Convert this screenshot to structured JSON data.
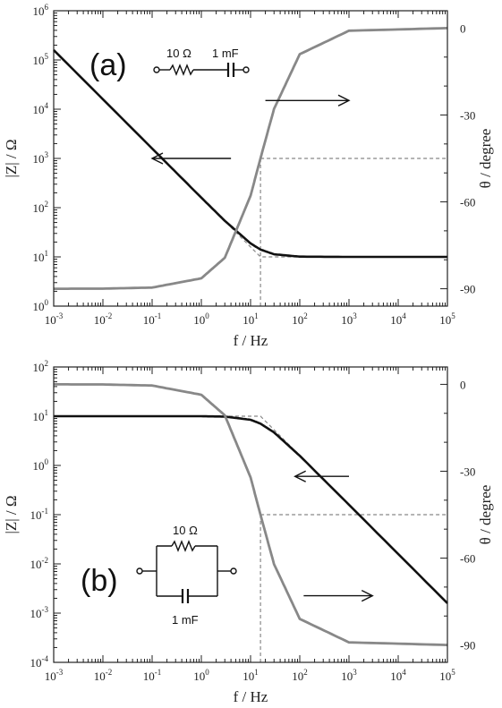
{
  "figure": {
    "background": "#ffffff"
  },
  "chart_data": [
    {
      "type": "line",
      "panel_label": "(a)",
      "circuit": {
        "topology": "series",
        "resistor": "10 Ω",
        "capacitor": "1 mF"
      },
      "xlabel": "f / Hz",
      "x_scale": "log",
      "xlim": [
        0.001,
        100000
      ],
      "x_ticks": [
        "10-3",
        "10-2",
        "10-1",
        "100",
        "101",
        "102",
        "103",
        "104",
        "105"
      ],
      "ylabel_left": "|Z| / Ω",
      "ylim_left": [
        1,
        1000000
      ],
      "y_scale_left": "log",
      "y_ticks_left": [
        "100",
        "101",
        "102",
        "103",
        "104",
        "105",
        "106"
      ],
      "ylabel_right": "θ / degree",
      "ylim_right": [
        -96,
        6
      ],
      "y_ticks_right": [
        "0",
        "-30",
        "-60",
        "-90"
      ],
      "characteristic_frequency": 15.9,
      "series": [
        {
          "axis": "left",
          "color": "#111111",
          "x": [
            0.001,
            0.01,
            0.1,
            1,
            3,
            10,
            15.9,
            30,
            100,
            1000,
            100000
          ],
          "y": [
            159155,
            15915,
            1592,
            159.5,
            54,
            18.8,
            14.1,
            11.3,
            10.12,
            10.0,
            10.0
          ]
        },
        {
          "axis": "right",
          "color": "#888888",
          "x": [
            0.001,
            0.01,
            0.1,
            1,
            3,
            10,
            15.9,
            30,
            100,
            1000,
            100000
          ],
          "y": [
            -90.0,
            -89.96,
            -89.6,
            -86.4,
            -79.3,
            -57.9,
            -45.0,
            -27.9,
            -9.0,
            -0.9,
            0.0
          ]
        }
      ],
      "guides": [
        {
          "axis": "left",
          "color": "#888888",
          "x": [
            0.001,
            15.9,
            100000
          ],
          "y": [
            159155,
            10,
            10
          ]
        },
        {
          "axis": "right",
          "color": "#888888",
          "x": [
            15.9,
            100000
          ],
          "y": [
            -45,
            -45
          ]
        },
        {
          "axis": "right",
          "color": "#888888",
          "x": [
            15.9,
            15.9
          ],
          "y": [
            -45,
            -96
          ]
        }
      ],
      "arrows": [
        {
          "axis": "left",
          "from": [
            4,
            1000
          ],
          "to": [
            0.1,
            1000
          ]
        },
        {
          "axis": "right",
          "from": [
            20,
            -25
          ],
          "to": [
            1000,
            -25
          ]
        }
      ]
    },
    {
      "type": "line",
      "panel_label": "(b)",
      "circuit": {
        "topology": "parallel",
        "resistor": "10 Ω",
        "capacitor": "1 mF"
      },
      "xlabel": "f / Hz",
      "x_scale": "log",
      "xlim": [
        0.001,
        100000
      ],
      "x_ticks": [
        "10-3",
        "10-2",
        "10-1",
        "100",
        "101",
        "102",
        "103",
        "104",
        "105"
      ],
      "ylabel_left": "|Z| / Ω",
      "ylim_left": [
        0.0001,
        100
      ],
      "y_scale_left": "log",
      "y_ticks_left": [
        "10-4",
        "10-3",
        "10-2",
        "10-1",
        "100",
        "101",
        "102"
      ],
      "ylabel_right": "θ / degree",
      "ylim_right": [
        -96,
        6
      ],
      "y_ticks_right": [
        "0",
        "-30",
        "-60",
        "-90"
      ],
      "characteristic_frequency": 15.9,
      "series": [
        {
          "axis": "left",
          "color": "#111111",
          "x": [
            0.001,
            0.01,
            0.1,
            1,
            3,
            10,
            15.9,
            30,
            100,
            1000,
            100000
          ],
          "y": [
            10.0,
            10.0,
            10.0,
            9.98,
            9.83,
            8.47,
            7.07,
            4.69,
            1.57,
            0.159,
            0.00159
          ]
        },
        {
          "axis": "right",
          "color": "#888888",
          "x": [
            0.001,
            0.01,
            0.1,
            1,
            3,
            10,
            15.9,
            30,
            100,
            1000,
            100000
          ],
          "y": [
            0.0,
            -0.04,
            -0.4,
            -3.6,
            -10.7,
            -32.1,
            -45.0,
            -62.1,
            -81.0,
            -89.1,
            -90.0
          ]
        }
      ],
      "guides": [
        {
          "axis": "left",
          "color": "#888888",
          "x": [
            0.001,
            15.9,
            100000
          ],
          "y": [
            10,
            10,
            0.00159
          ]
        },
        {
          "axis": "right",
          "color": "#888888",
          "x": [
            15.9,
            100000
          ],
          "y": [
            -45,
            -45
          ]
        },
        {
          "axis": "right",
          "color": "#888888",
          "x": [
            15.9,
            15.9
          ],
          "y": [
            -45,
            -96
          ]
        }
      ],
      "arrows": [
        {
          "axis": "left",
          "from": [
            1000,
            0.6
          ],
          "to": [
            80,
            0.6
          ]
        },
        {
          "axis": "right",
          "from": [
            120,
            -73
          ],
          "to": [
            3000,
            -73
          ]
        }
      ]
    }
  ]
}
